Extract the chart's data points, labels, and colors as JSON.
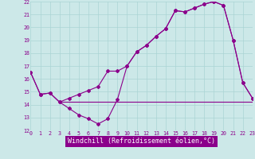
{
  "line1_x": [
    0,
    1,
    2,
    3,
    4,
    5,
    6,
    7,
    8,
    9,
    10,
    11,
    12,
    13,
    14,
    15,
    16,
    17,
    18,
    19,
    20,
    21,
    22,
    23
  ],
  "line1_y": [
    16.5,
    14.8,
    14.9,
    14.2,
    14.5,
    14.8,
    15.1,
    15.4,
    16.6,
    16.6,
    17.0,
    18.1,
    18.6,
    19.3,
    19.9,
    21.3,
    21.2,
    21.5,
    21.8,
    22.0,
    21.7,
    19.0,
    15.7,
    14.5
  ],
  "line2_x": [
    0,
    1,
    2,
    3,
    4,
    5,
    6,
    7,
    8,
    9,
    10,
    11,
    12,
    13,
    14,
    15,
    16,
    17,
    18,
    19,
    20,
    21,
    22,
    23
  ],
  "line2_y": [
    16.5,
    14.8,
    14.9,
    14.2,
    13.7,
    13.2,
    12.9,
    12.5,
    12.9,
    14.4,
    17.0,
    18.1,
    18.6,
    19.3,
    19.9,
    21.3,
    21.2,
    21.5,
    21.8,
    22.0,
    21.7,
    19.0,
    15.7,
    14.5
  ],
  "line3_x": [
    3,
    8,
    14,
    22,
    23
  ],
  "line3_y": [
    14.2,
    14.2,
    14.2,
    14.2,
    14.2
  ],
  "color": "#8b008b",
  "bg_color": "#cce8e8",
  "grid_color": "#aad4d4",
  "xlabel": "Windchill (Refroidissement éolien,°C)",
  "xlim": [
    0,
    23
  ],
  "ylim": [
    12,
    22
  ],
  "xtick_labels": [
    "0",
    "1",
    "2",
    "3",
    "4",
    "5",
    "6",
    "7",
    "8",
    "9",
    "10",
    "11",
    "12",
    "13",
    "14",
    "15",
    "16",
    "17",
    "18",
    "19",
    "20",
    "21",
    "22",
    "23"
  ],
  "ytick_labels": [
    "12",
    "13",
    "14",
    "15",
    "16",
    "17",
    "18",
    "19",
    "20",
    "21",
    "22"
  ]
}
